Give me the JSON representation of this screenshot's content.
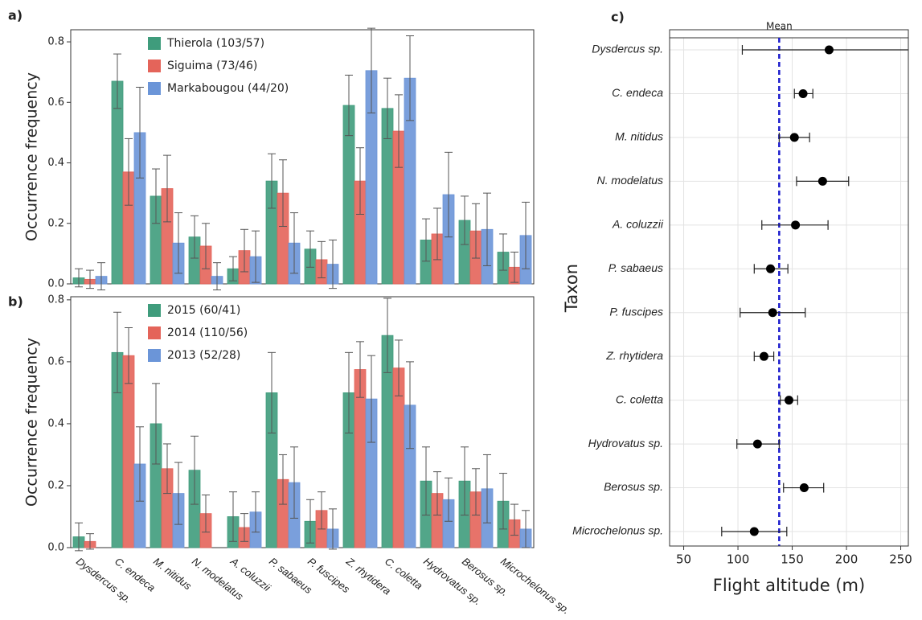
{
  "chart_data": [
    {
      "type": "bar",
      "panel_label": "a)",
      "y_label": "Occurrence frequency",
      "ylim": [
        0,
        0.84
      ],
      "yticks": [
        {
          "value": 0,
          "label": "0.0"
        },
        0.2,
        0.4,
        0.6,
        0.8
      ],
      "series": [
        {
          "name": "Thierola (103/57)",
          "color": "#3f9c7c",
          "values": [
            0.02,
            0.67,
            0.29,
            0.155,
            0.05,
            0.34,
            0.115,
            0.59,
            0.58,
            0.145,
            0.21,
            0.105
          ],
          "errors": [
            0.03,
            0.09,
            0.09,
            0.07,
            0.04,
            0.09,
            0.06,
            0.1,
            0.1,
            0.07,
            0.08,
            0.06
          ]
        },
        {
          "name": "Siguima (73/46)",
          "color": "#e4645a",
          "values": [
            0.015,
            0.37,
            0.315,
            0.125,
            0.11,
            0.3,
            0.08,
            0.34,
            0.505,
            0.165,
            0.175,
            0.055
          ],
          "errors": [
            0.03,
            0.11,
            0.11,
            0.075,
            0.07,
            0.11,
            0.06,
            0.11,
            0.12,
            0.085,
            0.09,
            0.05
          ]
        },
        {
          "name": "Markabougou (44/20)",
          "color": "#6b95d8",
          "values": [
            0.025,
            0.5,
            0.135,
            0.025,
            0.09,
            0.135,
            0.065,
            0.705,
            0.68,
            0.295,
            0.18,
            0.16
          ],
          "errors": [
            0.045,
            0.15,
            0.1,
            0.045,
            0.085,
            0.1,
            0.08,
            0.14,
            0.14,
            0.14,
            0.12,
            0.11
          ]
        }
      ]
    },
    {
      "type": "bar",
      "panel_label": "b)",
      "y_label": "Occurrence frequency",
      "categories": [
        "Dysdercus sp.",
        "C. endeca",
        "M. nitidus",
        "N. modelatus",
        "A. coluzzii",
        "P. sabaeus",
        "P. fuscipes",
        "Z. rhytidera",
        "C. coletta",
        "Hydrovatus sp.",
        "Berosus sp.",
        "Microchelonus sp."
      ],
      "ylim": [
        0,
        0.81
      ],
      "yticks": [
        {
          "value": 0,
          "label": "0.0"
        },
        0.2,
        0.4,
        0.6,
        0.8
      ],
      "series": [
        {
          "name": "2015 (60/41)",
          "color": "#3f9c7c",
          "values": [
            0.035,
            0.63,
            0.4,
            0.25,
            0.1,
            0.5,
            0.085,
            0.5,
            0.685,
            0.215,
            0.215,
            0.15
          ],
          "errors": [
            0.045,
            0.13,
            0.13,
            0.11,
            0.08,
            0.13,
            0.07,
            0.13,
            0.12,
            0.11,
            0.11,
            0.09
          ]
        },
        {
          "name": "2014 (110/56)",
          "color": "#e4645a",
          "values": [
            0.02,
            0.62,
            0.255,
            0.11,
            0.065,
            0.22,
            0.12,
            0.575,
            0.58,
            0.175,
            0.18,
            0.09
          ],
          "errors": [
            0.025,
            0.09,
            0.08,
            0.06,
            0.045,
            0.08,
            0.06,
            0.09,
            0.09,
            0.07,
            0.075,
            0.05
          ]
        },
        {
          "name": "2013 (52/28)",
          "color": "#6b95d8",
          "values": [
            0,
            0.27,
            0.175,
            0,
            0.115,
            0.21,
            0.06,
            0.48,
            0.46,
            0.155,
            0.19,
            0.06
          ],
          "errors": [
            0,
            0.12,
            0.1,
            0,
            0.065,
            0.115,
            0.065,
            0.14,
            0.14,
            0.07,
            0.11,
            0.06
          ]
        }
      ]
    },
    {
      "type": "dot",
      "panel_label": "c)",
      "x_label": "Flight altitude (m)",
      "y_label": "Taxon",
      "mean_label": "Mean",
      "mean": 138,
      "mean_color": "#1a1acc",
      "categories": [
        "Dysdercus sp.",
        "C. endeca",
        "M. nitidus",
        "N. modelatus",
        "A. coluzzii",
        "P. sabaeus",
        "P. fuscipes",
        "Z. rhytidera",
        "C. coletta",
        "Hydrovatus sp.",
        "Berosus sp.",
        "Microchelonus sp."
      ],
      "values": [
        184,
        160,
        152,
        178,
        153,
        130,
        132,
        124,
        147,
        118,
        161,
        115
      ],
      "lower": [
        104,
        152,
        138,
        154,
        122,
        115,
        102,
        115,
        139,
        99,
        142,
        85
      ],
      "upper": [
        260,
        169,
        166,
        202,
        183,
        146,
        162,
        133,
        155,
        138,
        179,
        145
      ],
      "xlim": [
        37,
        257
      ],
      "xticks": [
        50,
        100,
        150,
        200,
        250
      ],
      "color": "#000000"
    }
  ]
}
